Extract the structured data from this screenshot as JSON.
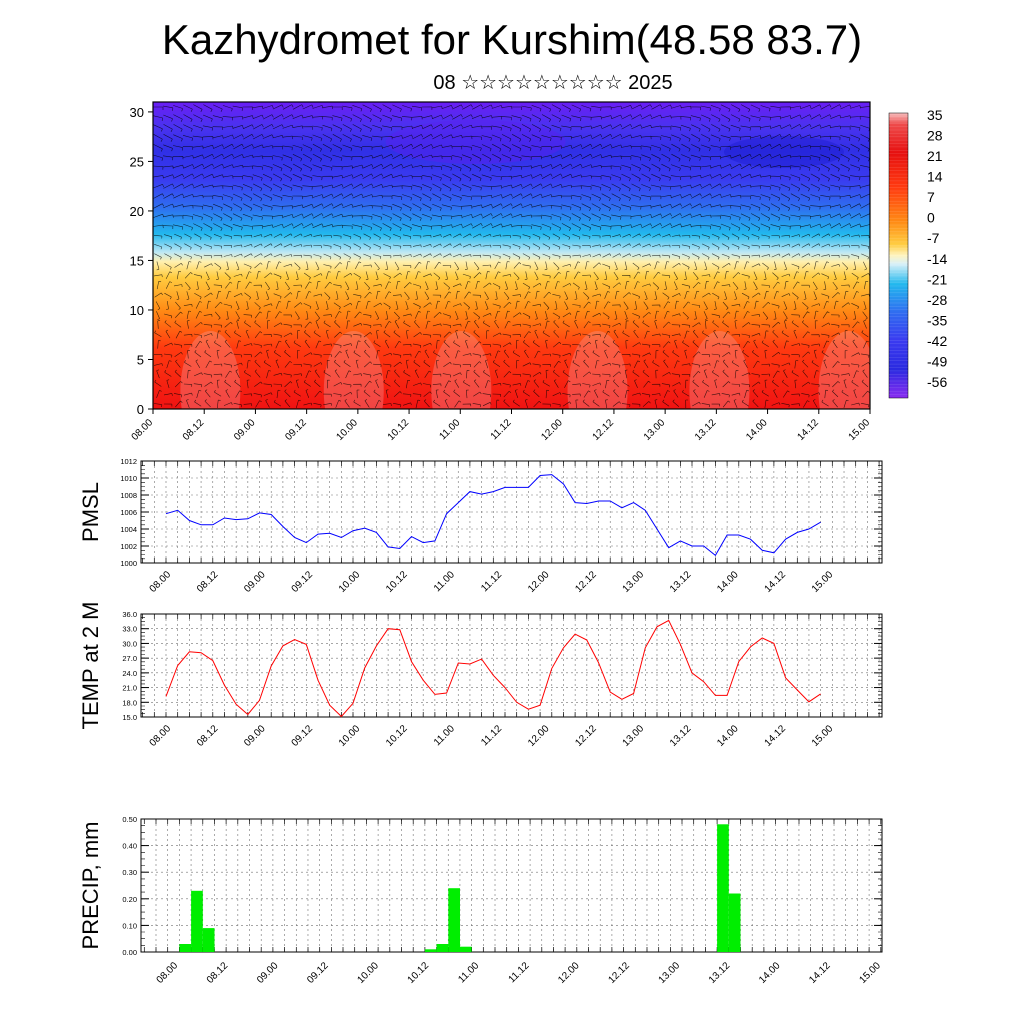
{
  "header": {
    "title": "Kazhydromet for Kurshim(48.58 83.7)",
    "subtitle": "08 ☆☆☆☆☆☆☆☆☆ 2025"
  },
  "chart_data": [
    {
      "type": "heatmap",
      "title": "",
      "xlabel": "",
      "ylabel": "",
      "x_tick_labels": [
        "08.00",
        "08.12",
        "09.00",
        "09.12",
        "10.00",
        "10.12",
        "11.00",
        "11.12",
        "12.00",
        "12.12",
        "13.00",
        "13.12",
        "14.00",
        "14.12",
        "15.00"
      ],
      "ylim": [
        0,
        31
      ],
      "y_ticks": [
        0,
        5,
        10,
        15,
        20,
        25,
        30
      ],
      "y_tick_labels": [
        "0",
        "5",
        "10",
        "15",
        "20",
        "25",
        "30"
      ],
      "colorbar": {
        "labels": [
          "35",
          "28",
          "21",
          "14",
          "7",
          "0",
          "-7",
          "-14",
          "-21",
          "-28",
          "-35",
          "-42",
          "-49",
          "-56"
        ],
        "range": [
          -60,
          38
        ]
      },
      "overlay": "wind vectors",
      "colors": {
        "hot": "#e81010",
        "warm": "#ff7a10",
        "mild": "#ffd84a",
        "cool": "#9adcf0",
        "cold": "#1ab4ee",
        "frigid": "#3050f0",
        "extreme": "#5a1ef0"
      }
    },
    {
      "type": "line",
      "ylabel": "PMSL",
      "xlabel": "",
      "ylim": [
        1000,
        1012
      ],
      "y_tick_labels": [
        "1000",
        "1002",
        "1004",
        "1006",
        "1008",
        "1010",
        "1012"
      ],
      "x_tick_labels": [
        "08.00",
        "08.12",
        "09.00",
        "09.12",
        "10.00",
        "10.12",
        "11.00",
        "11.12",
        "12.00",
        "12.12",
        "13.00",
        "13.12",
        "14.00",
        "14.12",
        "15.00"
      ],
      "grid": true,
      "series": [
        {
          "color": "#0000ff",
          "values": [
            1005.8,
            1006.2,
            1005.0,
            1004.5,
            1004.5,
            1005.3,
            1005.1,
            1005.2,
            1005.9,
            1005.7,
            1004.3,
            1003.0,
            1002.4,
            1003.4,
            1003.5,
            1003.0,
            1003.8,
            1004.1,
            1003.6,
            1001.9,
            1001.7,
            1003.1,
            1002.4,
            1002.6,
            1005.8,
            1007.1,
            1008.4,
            1008.1,
            1008.4,
            1008.9,
            1008.9,
            1008.9,
            1010.3,
            1010.4,
            1009.3,
            1007.1,
            1007.0,
            1007.3,
            1007.3,
            1006.5,
            1007.1,
            1006.2,
            1004.0,
            1001.8,
            1002.6,
            1002.0,
            1002.0,
            1000.9,
            1003.3,
            1003.3,
            1002.8,
            1001.5,
            1001.2,
            1002.8,
            1003.6,
            1004.0,
            1004.8
          ]
        }
      ]
    },
    {
      "type": "line",
      "ylabel": "TEMP at 2 M",
      "xlabel": "",
      "ylim": [
        15,
        36
      ],
      "y_tick_labels": [
        "15.0",
        "18.0",
        "21.0",
        "24.0",
        "27.0",
        "30.0",
        "33.0",
        "36.0"
      ],
      "x_tick_labels": [
        "08.00",
        "08.12",
        "09.00",
        "09.12",
        "10.00",
        "10.12",
        "11.00",
        "11.12",
        "12.00",
        "12.12",
        "13.00",
        "13.12",
        "14.00",
        "14.12",
        "15.00"
      ],
      "grid": true,
      "series": [
        {
          "color": "#ff0000",
          "values": [
            19.2,
            25.5,
            28.3,
            28.1,
            26.5,
            21.5,
            17.6,
            15.5,
            18.4,
            25.4,
            29.5,
            30.8,
            29.8,
            22.5,
            17.4,
            15.1,
            17.8,
            25.0,
            29.5,
            33.0,
            32.8,
            26.3,
            22.5,
            19.6,
            19.9,
            26.0,
            25.8,
            26.8,
            23.5,
            21.0,
            18.0,
            16.6,
            17.4,
            24.9,
            29.1,
            31.9,
            30.7,
            26.1,
            20.1,
            18.6,
            19.8,
            29.1,
            33.4,
            34.7,
            29.8,
            24.0,
            22.2,
            19.4,
            19.4,
            26.3,
            29.3,
            31.1,
            30.0,
            23.0,
            20.5,
            18.1,
            19.7
          ]
        }
      ]
    },
    {
      "type": "bar",
      "ylabel": "PRECIP, mm",
      "xlabel": "",
      "ylim": [
        0,
        0.5
      ],
      "y_tick_labels": [
        "0.00",
        "0.10",
        "0.20",
        "0.30",
        "0.40",
        "0.50"
      ],
      "x_tick_labels": [
        "08.00",
        "08.12",
        "09.00",
        "09.12",
        "10.00",
        "10.12",
        "11.00",
        "11.12",
        "12.00",
        "12.12",
        "13.00",
        "13.12",
        "14.00",
        "14.12",
        "15.00"
      ],
      "grid": true,
      "bar_color": "#00ee00",
      "values": [
        0,
        0,
        0.03,
        0.23,
        0.09,
        0,
        0,
        0,
        0,
        0,
        0,
        0,
        0,
        0,
        0,
        0,
        0,
        0,
        0,
        0,
        0,
        0,
        0,
        0.01,
        0.03,
        0.24,
        0.02,
        0,
        0,
        0,
        0,
        0,
        0,
        0,
        0,
        0,
        0,
        0,
        0,
        0,
        0,
        0,
        0,
        0,
        0,
        0,
        0,
        0,
        0.48,
        0.22,
        0,
        0,
        0,
        0,
        0,
        0,
        0
      ]
    }
  ]
}
